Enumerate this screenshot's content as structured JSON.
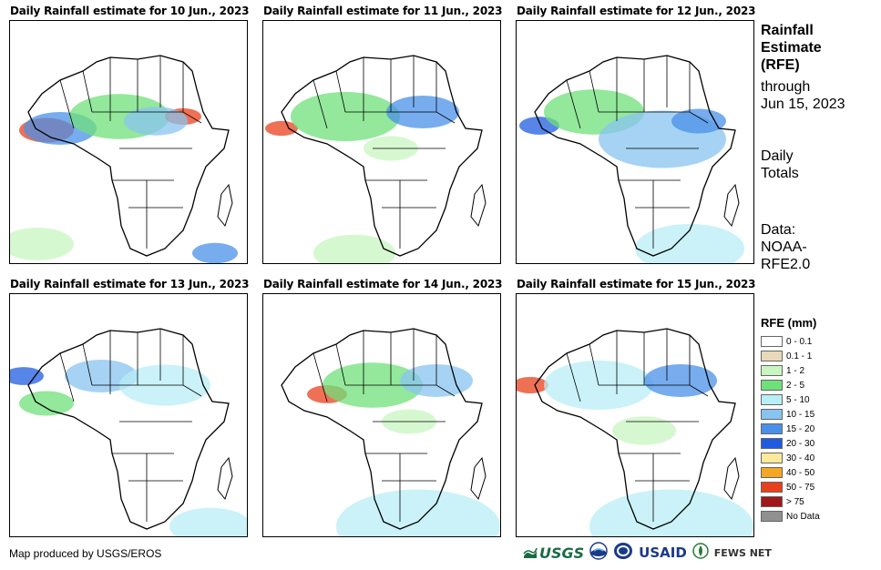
{
  "panels": [
    {
      "title": "Daily Rainfall estimate for 10 Jun., 2023"
    },
    {
      "title": "Daily Rainfall estimate for 11 Jun., 2023"
    },
    {
      "title": "Daily Rainfall estimate for 12 Jun., 2023"
    },
    {
      "title": "Daily Rainfall estimate for 13 Jun., 2023"
    },
    {
      "title": "Daily Rainfall estimate for 14 Jun., 2023"
    },
    {
      "title": "Daily Rainfall estimate for 15 Jun., 2023"
    }
  ],
  "sidebar": {
    "heading_line1": "Rainfall",
    "heading_line2": "Estimate",
    "heading_line3": "(RFE)",
    "through_line1": "through",
    "through_line2": "Jun 15, 2023",
    "daily_line1": "Daily",
    "daily_line2": "Totals",
    "data_line1": "Data:",
    "data_line2": "NOAA-",
    "data_line3": "RFE2.0"
  },
  "legend": {
    "title": "RFE (mm)",
    "items": [
      {
        "label": "0 - 0.1",
        "color": "#ffffff"
      },
      {
        "label": "0.1 - 1",
        "color": "#e8d9b8"
      },
      {
        "label": "1 - 2",
        "color": "#c8f5c0"
      },
      {
        "label": "2 - 5",
        "color": "#6fe07a"
      },
      {
        "label": "5 - 10",
        "color": "#b8eef5"
      },
      {
        "label": "10 - 15",
        "color": "#88c4f0"
      },
      {
        "label": "15 - 20",
        "color": "#4a90e8"
      },
      {
        "label": "20 - 30",
        "color": "#1f5ce0"
      },
      {
        "label": "30 - 40",
        "color": "#fde99a"
      },
      {
        "label": "40 - 50",
        "color": "#f5a623"
      },
      {
        "label": "50 - 75",
        "color": "#e8401c"
      },
      {
        "label": "> 75",
        "color": "#a01818"
      },
      {
        "label": "No Data",
        "color": "#909090"
      }
    ]
  },
  "footer": {
    "note": "Map produced by USGS/EROS",
    "logo_usgs": "USGS",
    "logo_usaid": "USAID",
    "logo_fews": "FEWS NET"
  }
}
